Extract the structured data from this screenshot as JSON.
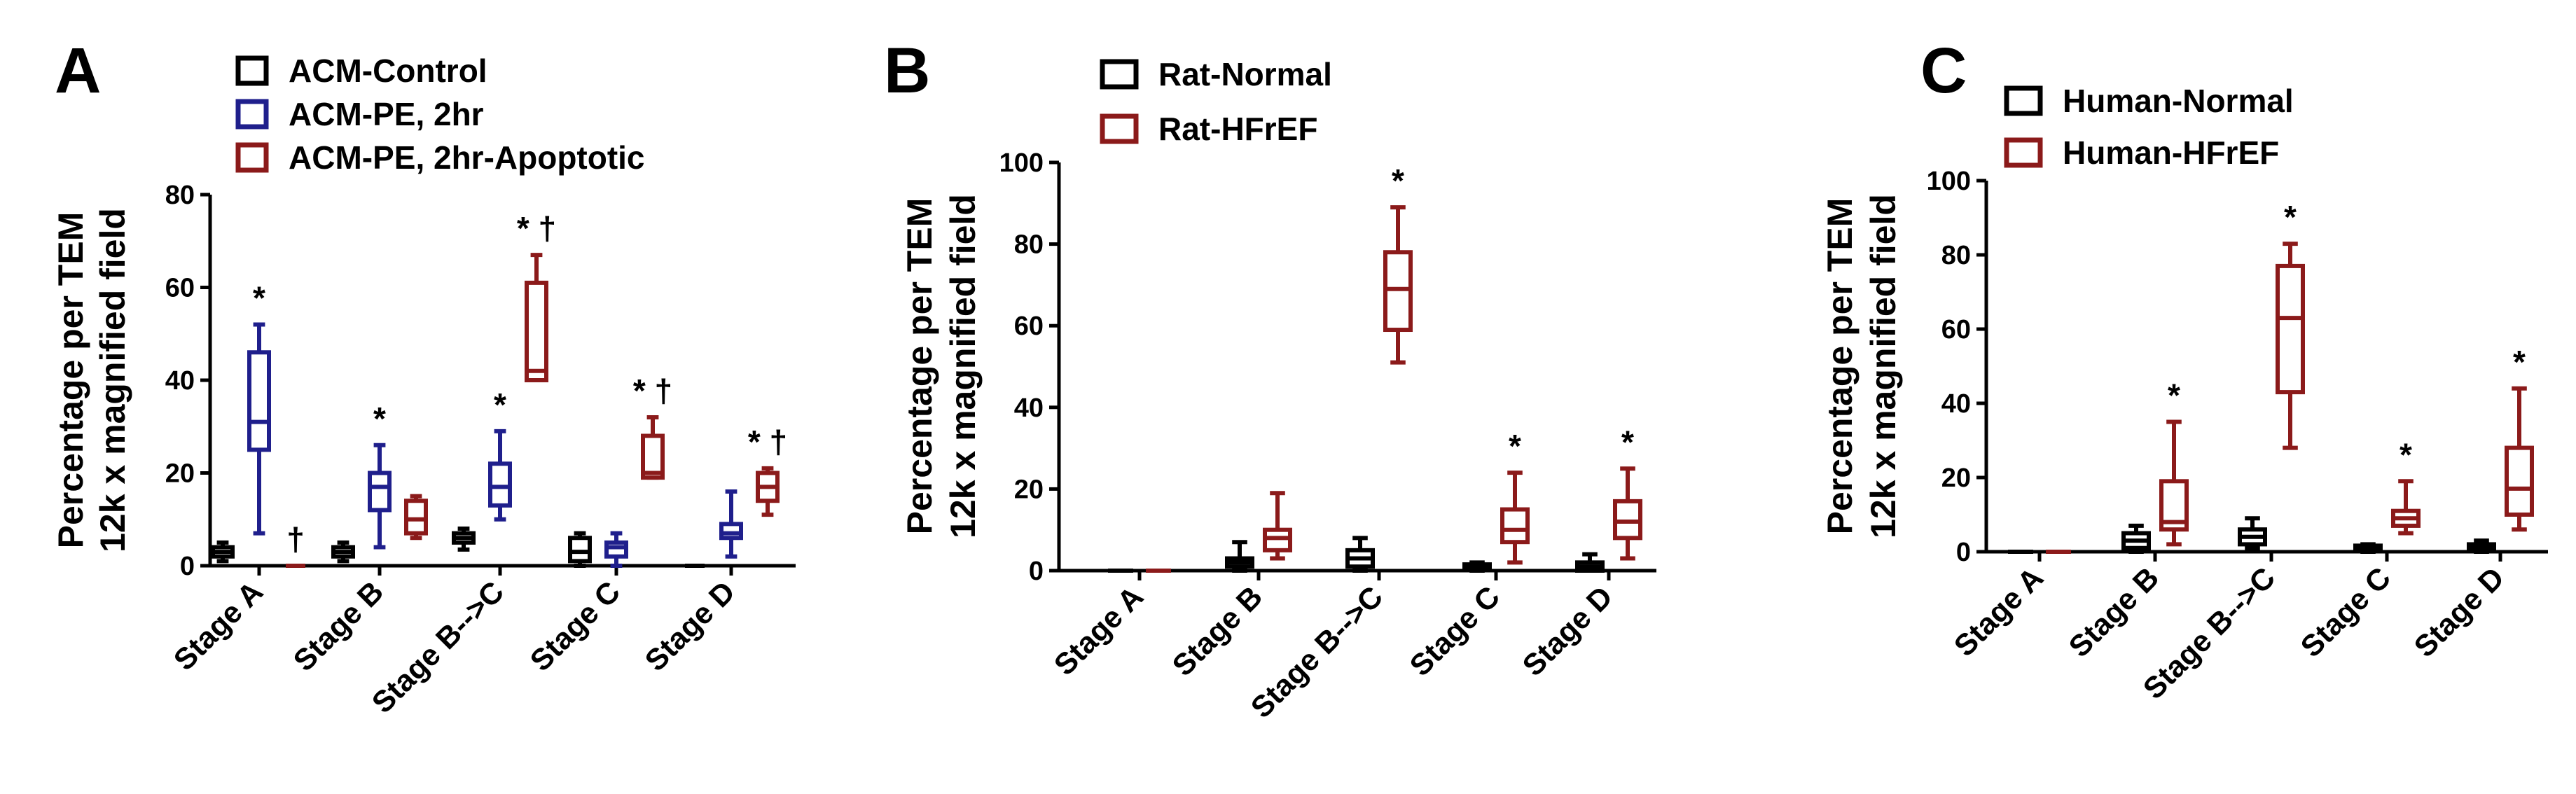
{
  "chart_data": [
    {
      "type": "box",
      "panel": "A",
      "ylabel": [
        "Percentage per TEM",
        "12k x magnified field"
      ],
      "ylim": [
        0,
        80
      ],
      "yticks": [
        0,
        20,
        40,
        60,
        80
      ],
      "categories": [
        "Stage A",
        "Stage B",
        "Stage B-->C",
        "Stage C",
        "Stage D"
      ],
      "series": [
        {
          "name": "ACM-Control",
          "color": "#000000",
          "boxes": [
            {
              "min": 1,
              "q1": 2,
              "median": 3,
              "q3": 4,
              "max": 5,
              "label": ""
            },
            {
              "min": 1,
              "q1": 2,
              "median": 3,
              "q3": 4,
              "max": 5,
              "label": ""
            },
            {
              "min": 3.5,
              "q1": 5,
              "median": 6,
              "q3": 7,
              "max": 8,
              "label": ""
            },
            {
              "min": 0,
              "q1": 1,
              "median": 3,
              "q3": 6,
              "max": 7,
              "label": ""
            },
            {
              "min": 0,
              "q1": 0,
              "median": 0,
              "q3": 0,
              "max": 0,
              "label": ""
            }
          ]
        },
        {
          "name": "ACM-PE, 2hr",
          "color": "#1f1f8c",
          "boxes": [
            {
              "min": 7,
              "q1": 25,
              "median": 31,
              "q3": 46,
              "max": 52,
              "label": "*"
            },
            {
              "min": 4,
              "q1": 12,
              "median": 17,
              "q3": 20,
              "max": 26,
              "label": "*"
            },
            {
              "min": 10,
              "q1": 13,
              "median": 17,
              "q3": 22,
              "max": 29,
              "label": "*"
            },
            {
              "min": 0,
              "q1": 2,
              "median": 4,
              "q3": 5,
              "max": 7,
              "label": ""
            },
            {
              "min": 2,
              "q1": 6,
              "median": 7,
              "q3": 9,
              "max": 16,
              "label": ""
            }
          ]
        },
        {
          "name": "ACM-PE, 2hr-Apoptotic",
          "color": "#8b1a1a",
          "boxes": [
            {
              "min": 0,
              "q1": 0,
              "median": 0,
              "q3": 0,
              "max": 0,
              "label": "†"
            },
            {
              "min": 6,
              "q1": 7,
              "median": 10,
              "q3": 14,
              "max": 15,
              "label": ""
            },
            {
              "min": 40,
              "q1": 40,
              "median": 42,
              "q3": 61,
              "max": 67,
              "label": "* †"
            },
            {
              "min": 19,
              "q1": 19,
              "median": 20,
              "q3": 28,
              "max": 32,
              "label": "* †"
            },
            {
              "min": 11,
              "q1": 14,
              "median": 17,
              "q3": 20,
              "max": 21,
              "label": "* †"
            }
          ]
        }
      ]
    },
    {
      "type": "box",
      "panel": "B",
      "ylabel": [
        "Percentage per TEM",
        "12k x magnified field"
      ],
      "ylim": [
        0,
        100
      ],
      "yticks": [
        0,
        20,
        40,
        60,
        80,
        100
      ],
      "categories": [
        "Stage A",
        "Stage B",
        "Stage B-->C",
        "Stage C",
        "Stage D"
      ],
      "series": [
        {
          "name": "Rat-Normal",
          "color": "#000000",
          "boxes": [
            {
              "min": 0,
              "q1": 0,
              "median": 0,
              "q3": 0,
              "max": 0,
              "label": ""
            },
            {
              "min": 0,
              "q1": 1,
              "median": 2,
              "q3": 3,
              "max": 7,
              "label": ""
            },
            {
              "min": 0,
              "q1": 1,
              "median": 3,
              "q3": 5,
              "max": 8,
              "label": ""
            },
            {
              "min": 0,
              "q1": 0.5,
              "median": 1,
              "q3": 1.5,
              "max": 2,
              "label": ""
            },
            {
              "min": 0,
              "q1": 0,
              "median": 1,
              "q3": 2,
              "max": 4,
              "label": ""
            }
          ]
        },
        {
          "name": "Rat-HFrEF",
          "color": "#8b1a1a",
          "boxes": [
            {
              "min": 0,
              "q1": 0,
              "median": 0,
              "q3": 0,
              "max": 0,
              "label": ""
            },
            {
              "min": 3,
              "q1": 5,
              "median": 8,
              "q3": 10,
              "max": 19,
              "label": ""
            },
            {
              "min": 51,
              "q1": 59,
              "median": 69,
              "q3": 78,
              "max": 89,
              "label": "*"
            },
            {
              "min": 2,
              "q1": 7,
              "median": 10,
              "q3": 15,
              "max": 24,
              "label": "*"
            },
            {
              "min": 3,
              "q1": 8,
              "median": 12,
              "q3": 17,
              "max": 25,
              "label": "*"
            }
          ]
        }
      ]
    },
    {
      "type": "box",
      "panel": "C",
      "ylabel": [
        "Percentage per TEM",
        "12k x magnified field"
      ],
      "ylim": [
        0,
        100
      ],
      "yticks": [
        0,
        20,
        40,
        60,
        80,
        100
      ],
      "categories": [
        "Stage A",
        "Stage B",
        "Stage B-->C",
        "Stage C",
        "Stage D"
      ],
      "series": [
        {
          "name": "Human-Normal",
          "color": "#000000",
          "boxes": [
            {
              "min": 0,
              "q1": 0,
              "median": 0,
              "q3": 0,
              "max": 0,
              "label": ""
            },
            {
              "min": 0,
              "q1": 1,
              "median": 3,
              "q3": 5,
              "max": 7,
              "label": ""
            },
            {
              "min": 1,
              "q1": 2,
              "median": 4,
              "q3": 6,
              "max": 9,
              "label": ""
            },
            {
              "min": 0,
              "q1": 0.5,
              "median": 1,
              "q3": 1.5,
              "max": 2,
              "label": ""
            },
            {
              "min": 0,
              "q1": 0.5,
              "median": 1,
              "q3": 2,
              "max": 3,
              "label": ""
            }
          ]
        },
        {
          "name": "Human-HFrEF",
          "color": "#8b1a1a",
          "boxes": [
            {
              "min": 0,
              "q1": 0,
              "median": 0,
              "q3": 0,
              "max": 0,
              "label": ""
            },
            {
              "min": 2,
              "q1": 6,
              "median": 8,
              "q3": 19,
              "max": 35,
              "label": "*"
            },
            {
              "min": 28,
              "q1": 43,
              "median": 63,
              "q3": 77,
              "max": 83,
              "label": "*"
            },
            {
              "min": 5,
              "q1": 7,
              "median": 9,
              "q3": 11,
              "max": 19,
              "label": "*"
            },
            {
              "min": 6,
              "q1": 10,
              "median": 17,
              "q3": 28,
              "max": 44,
              "label": "*"
            }
          ]
        }
      ]
    }
  ]
}
